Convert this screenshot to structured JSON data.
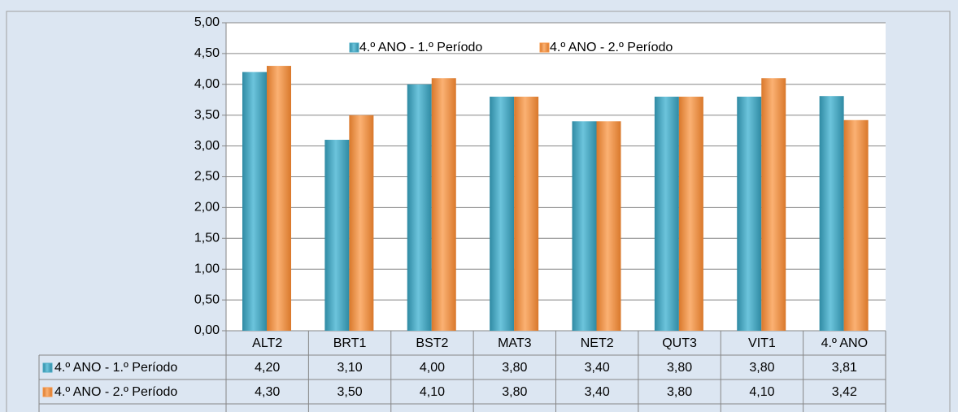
{
  "chart_data": {
    "type": "bar",
    "categories": [
      "ALT2",
      "BRT1",
      "BST2",
      "MAT3",
      "NET2",
      "QUT3",
      "VIT1",
      "4.º ANO"
    ],
    "series": [
      {
        "name": "4.º ANO - 1.º Período",
        "color": "#4bacc6",
        "values": [
          4.2,
          3.1,
          4.0,
          3.8,
          3.4,
          3.8,
          3.8,
          3.81
        ],
        "value_labels": [
          "4,20",
          "3,10",
          "4,00",
          "3,80",
          "3,40",
          "3,80",
          "3,80",
          "3,81"
        ]
      },
      {
        "name": "4.º ANO - 2.º Período",
        "color": "#f79646",
        "values": [
          4.3,
          3.5,
          4.1,
          3.8,
          3.4,
          3.8,
          4.1,
          3.42
        ],
        "value_labels": [
          "4,30",
          "3,50",
          "4,10",
          "3,80",
          "3,40",
          "3,80",
          "4,10",
          "3,42"
        ]
      }
    ],
    "ylim": [
      0,
      5
    ],
    "yticks": [
      {
        "value": 0,
        "label": "0,00"
      },
      {
        "value": 0.5,
        "label": "0,50"
      },
      {
        "value": 1,
        "label": "1,00"
      },
      {
        "value": 1.5,
        "label": "1,50"
      },
      {
        "value": 2,
        "label": "2,00"
      },
      {
        "value": 2.5,
        "label": "2,50"
      },
      {
        "value": 3,
        "label": "3,00"
      },
      {
        "value": 3.5,
        "label": "3,50"
      },
      {
        "value": 4,
        "label": "4,00"
      },
      {
        "value": 4.5,
        "label": "4,50"
      },
      {
        "value": 5,
        "label": "5,00"
      }
    ],
    "grid": true,
    "legend": "top"
  }
}
